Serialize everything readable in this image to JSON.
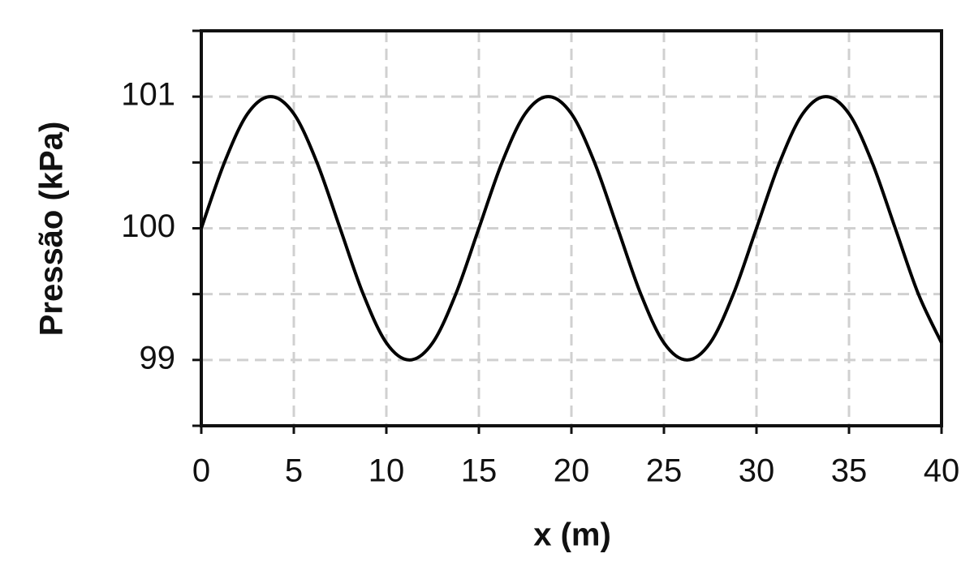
{
  "chart_data": {
    "type": "line",
    "xlabel": "x (m)",
    "ylabel": "Pressão (kPa)",
    "x": [
      0,
      1.25,
      2.5,
      3.75,
      5,
      6.25,
      7.5,
      8.75,
      10,
      11.25,
      12.5,
      13.75,
      15,
      16.25,
      17.5,
      18.75,
      20,
      21.25,
      22.5,
      23.75,
      25,
      26.25,
      27.5,
      28.75,
      30,
      31.25,
      32.5,
      33.75,
      35,
      36.25,
      37.5,
      38.75,
      40
    ],
    "series": [
      {
        "color": "#000000",
        "values": [
          100,
          100.5,
          100.87,
          101,
          100.87,
          100.5,
          100,
          99.5,
          99.13,
          99,
          99.13,
          99.5,
          100,
          100.5,
          100.87,
          101,
          100.87,
          100.5,
          100,
          99.5,
          99.13,
          99,
          99.13,
          99.5,
          100,
          100.5,
          100.87,
          101,
          100.87,
          100.5,
          100,
          99.5,
          99.13
        ]
      }
    ],
    "xlim": [
      0,
      40
    ],
    "xticks": [
      0,
      5,
      10,
      15,
      20,
      25,
      30,
      35,
      40
    ],
    "ylim": [
      98.5,
      101.5
    ],
    "yticks": [
      99,
      100,
      101
    ],
    "yminorticks": [
      98.5,
      99.5,
      100.5,
      101.5
    ],
    "grid": true
  }
}
